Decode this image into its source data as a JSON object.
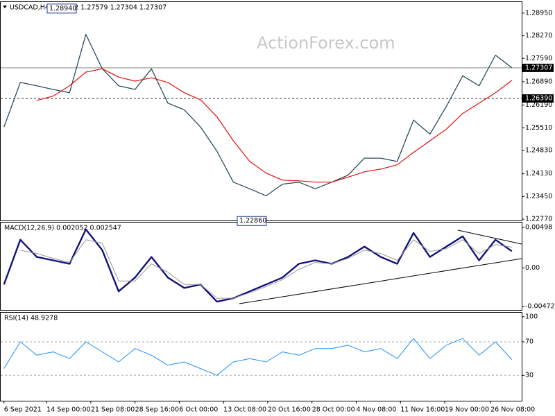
{
  "chart_data": [
    {
      "type": "line",
      "title": "USDCAD,H4  1.27572 1.27579 1.27304 1.27307",
      "watermark": "ActionForex.com",
      "xlim": [
        -0.2,
        31.6
      ],
      "ylim": [
        1.2273,
        1.2928
      ],
      "yticks": [
        {
          "value": 1.2895,
          "label": "1.28950"
        },
        {
          "value": 1.2827,
          "label": "1.28270"
        },
        {
          "value": 1.2759,
          "label": "1.27590"
        },
        {
          "value": 1.2689,
          "label": "1.26890"
        },
        {
          "value": 1.2619,
          "label": "1.26190"
        },
        {
          "value": 1.2551,
          "label": "1.25510"
        },
        {
          "value": 1.2483,
          "label": "1.24830"
        },
        {
          "value": 1.2413,
          "label": "1.24130"
        },
        {
          "value": 1.2345,
          "label": "1.23450"
        },
        {
          "value": 1.2277,
          "label": "1.22770"
        }
      ],
      "last_price": 1.27307,
      "level_line": {
        "value": 1.2639,
        "label": "1.26390"
      },
      "high_label": {
        "value": 1.2894,
        "label": "1.28940"
      },
      "low_label": {
        "value": 1.2286,
        "label": "1.22860"
      },
      "series": [
        {
          "color": "#2b4a5a",
          "width": 1.3,
          "values": [
            1.2553,
            1.2687,
            1.2677,
            1.2666,
            1.2656,
            1.2831,
            1.2728,
            1.2677,
            1.2666,
            1.2728,
            1.2625,
            1.2605,
            1.2553,
            1.2481,
            1.2388,
            1.2368,
            1.2347,
            1.2382,
            1.2388,
            1.2368,
            1.2388,
            1.2409,
            1.246,
            1.246,
            1.245,
            1.2574,
            1.2532,
            1.2615,
            1.2707,
            1.2677,
            1.2769,
            1.2731
          ]
        },
        {
          "color": "#e01010",
          "width": 1.2,
          "values": [
            null,
            null,
            1.2633,
            1.2646,
            1.2677,
            1.2718,
            1.2728,
            1.2703,
            1.2691,
            1.2701,
            1.2687,
            1.2656,
            1.2635,
            1.2584,
            1.2512,
            1.245,
            1.2415,
            1.2394,
            1.2392,
            1.2388,
            1.2388,
            1.2403,
            1.2419,
            1.2427,
            1.244,
            1.2477,
            1.2512,
            1.2547,
            1.2594,
            1.2625,
            1.2656,
            1.2693
          ]
        }
      ]
    },
    {
      "type": "line",
      "title": "MACD(12,26,9) 0.002052 0.002547",
      "xlim": [
        -0.2,
        31.6
      ],
      "ylim": [
        -0.00515,
        0.00557
      ],
      "yticks": [
        0.00498,
        {
          "value": 0,
          "label": "0.00"
        },
        -0.004723
      ],
      "series": [
        {
          "color": "#12127a",
          "width": 2.4,
          "values": [
            -0.00203,
            0.00346,
            0.00135,
            0.00093,
            0.00051,
            0.00473,
            0.00219,
            -0.00287,
            -0.00118,
            0.00135,
            -0.00118,
            -0.00245,
            -0.00203,
            -0.00414,
            -0.00371,
            -0.00287,
            -0.00203,
            -0.00118,
            0.00051,
            0.00093,
            0.00051,
            0.00135,
            0.00262,
            0.00135,
            0.00051,
            0.0043,
            0.00135,
            0.00262,
            0.00388,
            0.00093,
            0.00346,
            0.002052
          ]
        },
        {
          "color": "#999999",
          "width": 1,
          "values": [
            null,
            0.00219,
            0.00177,
            0.00118,
            0.00068,
            0.00346,
            0.00304,
            -0.0016,
            -0.0016,
            0.00051,
            -0.00051,
            -0.00203,
            -0.00203,
            -0.00371,
            -0.00371,
            -0.00304,
            -0.00228,
            -0.00143,
            -0.00017,
            0.00068,
            0.00051,
            0.00118,
            0.00219,
            0.00177,
            0.00093,
            0.00346,
            0.00203,
            0.00236,
            0.00346,
            0.00177,
            0.00287,
            0.002547
          ]
        }
      ]
    },
    {
      "type": "line",
      "title": "RSI(14) 48.9278",
      "xlim": [
        -0.2,
        31.6
      ],
      "ylim": [
        -0.4,
        104.8
      ],
      "yticks": [
        100,
        70,
        30
      ],
      "levels": [
        70,
        30
      ],
      "xticks": [
        {
          "value": 0,
          "label": "6 Sep 2021"
        },
        {
          "value": 2.6,
          "label": "14 Sep 00:00"
        },
        {
          "value": 5.3,
          "label": "21 Sep 08:00"
        },
        {
          "value": 8,
          "label": "28 Sep 16:00"
        },
        {
          "value": 10.7,
          "label": "6 Oct 00:00"
        },
        {
          "value": 13.4,
          "label": "13 Oct 08:00"
        },
        {
          "value": 16.1,
          "label": "20 Oct 16:00"
        },
        {
          "value": 18.8,
          "label": "28 Oct 00:00"
        },
        {
          "value": 21.5,
          "label": "4 Nov 08:00"
        },
        {
          "value": 24.2,
          "label": "11 Nov 16:00"
        },
        {
          "value": 26.9,
          "label": "19 Nov 00:00"
        },
        {
          "value": 29.7,
          "label": "26 Nov 08:00"
        }
      ],
      "series": [
        {
          "color": "#1e90ff",
          "width": 1,
          "values": [
            38,
            70,
            54,
            58,
            50,
            70,
            58,
            46,
            62,
            54,
            42,
            46,
            38,
            30,
            46,
            50,
            46,
            58,
            54,
            62,
            62,
            66,
            58,
            62,
            50,
            74,
            50,
            66,
            74,
            54,
            70,
            48.9278
          ]
        }
      ]
    }
  ]
}
